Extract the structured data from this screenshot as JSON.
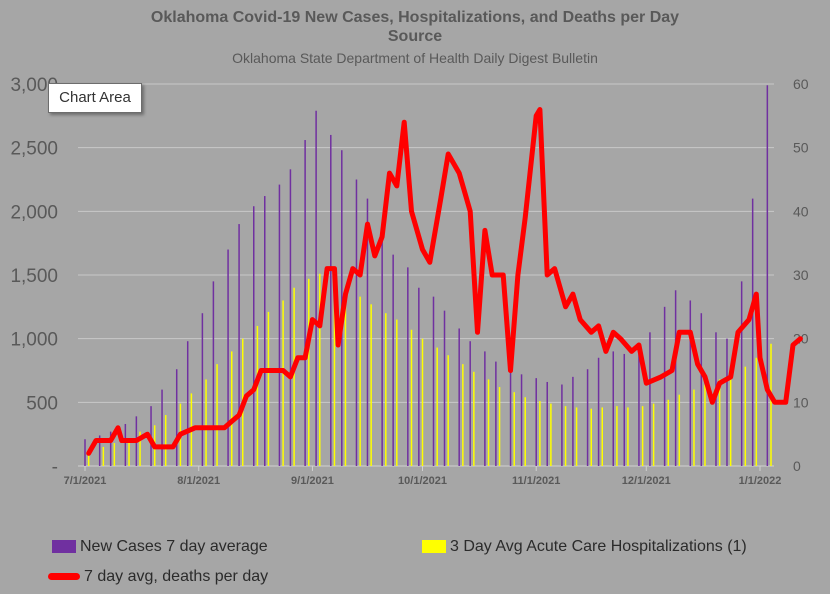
{
  "title": "Oklahoma Covid-19 New Cases, Hospitalizations, and Deaths per Day",
  "subtitle": "Source",
  "source": "Oklahoma State Department of Health Daily Digest Bulletin",
  "tooltip": "Chart Area",
  "colors": {
    "cases": "#7030a0",
    "hosp": "#ffff00",
    "deaths": "#ff0000",
    "background": "#a6a6a6",
    "grid": "#c8c8c8"
  },
  "chart_data": {
    "type": "bar",
    "x_tick_labels": [
      "7/1/2021",
      "8/1/2021",
      "9/1/2021",
      "10/1/2021",
      "11/1/2021",
      "12/1/2021",
      "1/1/2022"
    ],
    "x_range": [
      "2021-07-01",
      "2022-01-04"
    ],
    "y_left": {
      "ylim": [
        0,
        3000
      ],
      "tick_labels": [
        "-",
        "500",
        "1,000",
        "1,500",
        "2,000",
        "2,500",
        "3,000"
      ]
    },
    "y_right": {
      "ylim": [
        0,
        60
      ],
      "tick_labels": [
        "0",
        "10",
        "20",
        "30",
        "40",
        "50",
        "60"
      ]
    },
    "grid": true,
    "legend_position": "bottom",
    "series": [
      {
        "name": "New Cases 7 day average",
        "type": "bar",
        "axis": "left",
        "points": [
          [
            "2021-07-01",
            210
          ],
          [
            "2021-07-05",
            240
          ],
          [
            "2021-07-08",
            270
          ],
          [
            "2021-07-12",
            330
          ],
          [
            "2021-07-15",
            390
          ],
          [
            "2021-07-19",
            470
          ],
          [
            "2021-07-22",
            600
          ],
          [
            "2021-07-26",
            760
          ],
          [
            "2021-07-29",
            980
          ],
          [
            "2021-08-02",
            1200
          ],
          [
            "2021-08-05",
            1450
          ],
          [
            "2021-08-09",
            1700
          ],
          [
            "2021-08-12",
            1900
          ],
          [
            "2021-08-16",
            2040
          ],
          [
            "2021-08-19",
            2120
          ],
          [
            "2021-08-23",
            2210
          ],
          [
            "2021-08-26",
            2330
          ],
          [
            "2021-08-30",
            2560
          ],
          [
            "2021-09-02",
            2790
          ],
          [
            "2021-09-06",
            2600
          ],
          [
            "2021-09-09",
            2480
          ],
          [
            "2021-09-13",
            2250
          ],
          [
            "2021-09-16",
            2100
          ],
          [
            "2021-09-20",
            1850
          ],
          [
            "2021-09-23",
            1660
          ],
          [
            "2021-09-27",
            1560
          ],
          [
            "2021-09-30",
            1400
          ],
          [
            "2021-10-04",
            1330
          ],
          [
            "2021-10-07",
            1220
          ],
          [
            "2021-10-11",
            1080
          ],
          [
            "2021-10-14",
            980
          ],
          [
            "2021-10-18",
            900
          ],
          [
            "2021-10-21",
            820
          ],
          [
            "2021-10-25",
            770
          ],
          [
            "2021-10-28",
            720
          ],
          [
            "2021-11-01",
            690
          ],
          [
            "2021-11-04",
            660
          ],
          [
            "2021-11-08",
            640
          ],
          [
            "2021-11-11",
            700
          ],
          [
            "2021-11-15",
            760
          ],
          [
            "2021-11-18",
            850
          ],
          [
            "2021-11-22",
            900
          ],
          [
            "2021-11-25",
            880
          ],
          [
            "2021-11-29",
            920
          ],
          [
            "2021-12-02",
            1050
          ],
          [
            "2021-12-06",
            1250
          ],
          [
            "2021-12-09",
            1380
          ],
          [
            "2021-12-13",
            1300
          ],
          [
            "2021-12-16",
            1200
          ],
          [
            "2021-12-20",
            1050
          ],
          [
            "2021-12-23",
            1000
          ],
          [
            "2021-12-27",
            1450
          ],
          [
            "2021-12-30",
            2100
          ],
          [
            "2022-01-03",
            2990
          ]
        ]
      },
      {
        "name": "3 Day Avg Acute Care Hospitalizations (1)",
        "type": "bar",
        "axis": "left",
        "points": [
          [
            "2021-07-02",
            120
          ],
          [
            "2021-07-06",
            150
          ],
          [
            "2021-07-09",
            180
          ],
          [
            "2021-07-13",
            220
          ],
          [
            "2021-07-16",
            270
          ],
          [
            "2021-07-20",
            320
          ],
          [
            "2021-07-23",
            400
          ],
          [
            "2021-07-27",
            490
          ],
          [
            "2021-07-30",
            570
          ],
          [
            "2021-08-03",
            680
          ],
          [
            "2021-08-06",
            800
          ],
          [
            "2021-08-10",
            900
          ],
          [
            "2021-08-13",
            1000
          ],
          [
            "2021-08-17",
            1100
          ],
          [
            "2021-08-20",
            1210
          ],
          [
            "2021-08-24",
            1300
          ],
          [
            "2021-08-27",
            1400
          ],
          [
            "2021-08-31",
            1470
          ],
          [
            "2021-09-03",
            1510
          ],
          [
            "2021-09-07",
            1460
          ],
          [
            "2021-09-10",
            1400
          ],
          [
            "2021-09-14",
            1330
          ],
          [
            "2021-09-17",
            1270
          ],
          [
            "2021-09-21",
            1200
          ],
          [
            "2021-09-24",
            1150
          ],
          [
            "2021-09-28",
            1070
          ],
          [
            "2021-10-01",
            1000
          ],
          [
            "2021-10-05",
            930
          ],
          [
            "2021-10-08",
            870
          ],
          [
            "2021-10-12",
            800
          ],
          [
            "2021-10-15",
            740
          ],
          [
            "2021-10-19",
            680
          ],
          [
            "2021-10-22",
            620
          ],
          [
            "2021-10-26",
            580
          ],
          [
            "2021-10-29",
            540
          ],
          [
            "2021-11-02",
            510
          ],
          [
            "2021-11-05",
            490
          ],
          [
            "2021-11-09",
            470
          ],
          [
            "2021-11-12",
            460
          ],
          [
            "2021-11-16",
            450
          ],
          [
            "2021-11-19",
            460
          ],
          [
            "2021-11-23",
            470
          ],
          [
            "2021-11-26",
            460
          ],
          [
            "2021-11-30",
            470
          ],
          [
            "2021-12-03",
            490
          ],
          [
            "2021-12-07",
            520
          ],
          [
            "2021-12-10",
            560
          ],
          [
            "2021-12-14",
            600
          ],
          [
            "2021-12-17",
            640
          ],
          [
            "2021-12-21",
            680
          ],
          [
            "2021-12-24",
            700
          ],
          [
            "2021-12-28",
            780
          ],
          [
            "2021-12-31",
            850
          ],
          [
            "2022-01-04",
            960
          ]
        ]
      },
      {
        "name": "7 day avg, deaths per day",
        "type": "line",
        "axis": "right",
        "points": [
          [
            "2021-07-02",
            2
          ],
          [
            "2021-07-04",
            4
          ],
          [
            "2021-07-08",
            4
          ],
          [
            "2021-07-10",
            6
          ],
          [
            "2021-07-11",
            4
          ],
          [
            "2021-07-15",
            4
          ],
          [
            "2021-07-18",
            5
          ],
          [
            "2021-07-20",
            3
          ],
          [
            "2021-07-25",
            3
          ],
          [
            "2021-07-27",
            5
          ],
          [
            "2021-07-31",
            6
          ],
          [
            "2021-08-04",
            6
          ],
          [
            "2021-08-08",
            6
          ],
          [
            "2021-08-10",
            7
          ],
          [
            "2021-08-12",
            8
          ],
          [
            "2021-08-14",
            11
          ],
          [
            "2021-08-16",
            12
          ],
          [
            "2021-08-18",
            15
          ],
          [
            "2021-08-21",
            15
          ],
          [
            "2021-08-24",
            15
          ],
          [
            "2021-08-26",
            14
          ],
          [
            "2021-08-28",
            17
          ],
          [
            "2021-08-30",
            17
          ],
          [
            "2021-09-01",
            23
          ],
          [
            "2021-09-03",
            22
          ],
          [
            "2021-09-05",
            31
          ],
          [
            "2021-09-07",
            31
          ],
          [
            "2021-09-08",
            19
          ],
          [
            "2021-09-10",
            27
          ],
          [
            "2021-09-12",
            31
          ],
          [
            "2021-09-14",
            30
          ],
          [
            "2021-09-16",
            38
          ],
          [
            "2021-09-18",
            33
          ],
          [
            "2021-09-20",
            36
          ],
          [
            "2021-09-22",
            46
          ],
          [
            "2021-09-24",
            44
          ],
          [
            "2021-09-26",
            54
          ],
          [
            "2021-09-28",
            40
          ],
          [
            "2021-10-01",
            34
          ],
          [
            "2021-10-03",
            32
          ],
          [
            "2021-10-06",
            42
          ],
          [
            "2021-10-08",
            49
          ],
          [
            "2021-10-11",
            46
          ],
          [
            "2021-10-14",
            40
          ],
          [
            "2021-10-16",
            21
          ],
          [
            "2021-10-18",
            37
          ],
          [
            "2021-10-20",
            30
          ],
          [
            "2021-10-23",
            30
          ],
          [
            "2021-10-25",
            15
          ],
          [
            "2021-10-27",
            30
          ],
          [
            "2021-10-29",
            39
          ],
          [
            "2021-11-01",
            55
          ],
          [
            "2021-11-02",
            56
          ],
          [
            "2021-11-04",
            30
          ],
          [
            "2021-11-06",
            31
          ],
          [
            "2021-11-09",
            25
          ],
          [
            "2021-11-11",
            27
          ],
          [
            "2021-11-13",
            23
          ],
          [
            "2021-11-16",
            21
          ],
          [
            "2021-11-18",
            22
          ],
          [
            "2021-11-20",
            18
          ],
          [
            "2021-11-22",
            21
          ],
          [
            "2021-11-24",
            20
          ],
          [
            "2021-11-27",
            18
          ],
          [
            "2021-11-29",
            19
          ],
          [
            "2021-12-01",
            13
          ],
          [
            "2021-12-05",
            14
          ],
          [
            "2021-12-08",
            15
          ],
          [
            "2021-12-10",
            21
          ],
          [
            "2021-12-13",
            21
          ],
          [
            "2021-12-15",
            16
          ],
          [
            "2021-12-17",
            14
          ],
          [
            "2021-12-19",
            10
          ],
          [
            "2021-12-21",
            13
          ],
          [
            "2021-12-24",
            14
          ],
          [
            "2021-12-26",
            21
          ],
          [
            "2021-12-29",
            23
          ],
          [
            "2021-12-31",
            27
          ],
          [
            "2022-01-01",
            17
          ],
          [
            "2022-01-03",
            12
          ],
          [
            "2022-01-05",
            10
          ],
          [
            "2022-01-08",
            10
          ],
          [
            "2022-01-10",
            19
          ],
          [
            "2022-01-12",
            20
          ]
        ]
      }
    ]
  }
}
